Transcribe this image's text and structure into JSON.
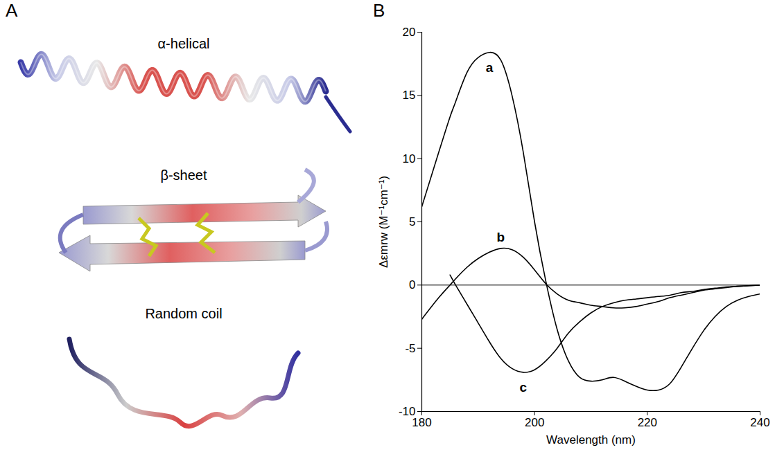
{
  "panel_a": {
    "letter": "A",
    "labels": [
      "α-helical",
      "β-sheet",
      "Random coil"
    ]
  },
  "chart_data": {
    "letter": "B",
    "type": "line",
    "xlabel": "Wavelength (nm)",
    "ylabel": "Δεmrw (M⁻¹cm⁻¹)",
    "xlim": [
      180,
      240
    ],
    "xticks": [
      180,
      200,
      220,
      240
    ],
    "ylim": [
      -10,
      20
    ],
    "yticks": [
      -10,
      -5,
      0,
      5,
      10,
      15,
      20
    ],
    "x": [
      180,
      183,
      185,
      186,
      188,
      190,
      192,
      194,
      196,
      198,
      200,
      202,
      204,
      206,
      208,
      210,
      212,
      214,
      216,
      218,
      220,
      222,
      224,
      226,
      228,
      230,
      232,
      234,
      236,
      238,
      240
    ],
    "series": [
      {
        "name": "a",
        "color": "#000000",
        "values": [
          6.2,
          10.5,
          13.3,
          14.5,
          16.8,
          18,
          18.4,
          17.8,
          15,
          10.5,
          5,
          0.3,
          -3.5,
          -6,
          -7.3,
          -7.6,
          -7.5,
          -7.3,
          -7.6,
          -8,
          -8.3,
          -8.3,
          -7.8,
          -6.5,
          -5,
          -3.6,
          -2.5,
          -1.7,
          -1.2,
          -0.9,
          -0.7
        ]
      },
      {
        "name": "b",
        "color": "#000000",
        "values": [
          -2.7,
          -1,
          0,
          0.5,
          1.4,
          2.1,
          2.6,
          2.9,
          2.8,
          2.2,
          1.2,
          0.1,
          -0.7,
          -1.2,
          -1.4,
          -1.6,
          -1.7,
          -1.8,
          -1.8,
          -1.7,
          -1.5,
          -1.3,
          -1.0,
          -0.8,
          -0.6,
          -0.4,
          -0.3,
          -0.2,
          -0.1,
          -0.05,
          0
        ]
      },
      {
        "name": "c",
        "color": "#000000",
        "values": [
          null,
          null,
          0.8,
          0,
          -1.5,
          -3,
          -4.5,
          -5.8,
          -6.6,
          -6.9,
          -6.7,
          -6,
          -5,
          -3.8,
          -2.9,
          -2.2,
          -1.7,
          -1.4,
          -1.2,
          -1.1,
          -1.0,
          -0.9,
          -0.8,
          -0.6,
          -0.5,
          -0.35,
          -0.25,
          -0.15,
          -0.1,
          -0.05,
          0
        ]
      }
    ]
  }
}
